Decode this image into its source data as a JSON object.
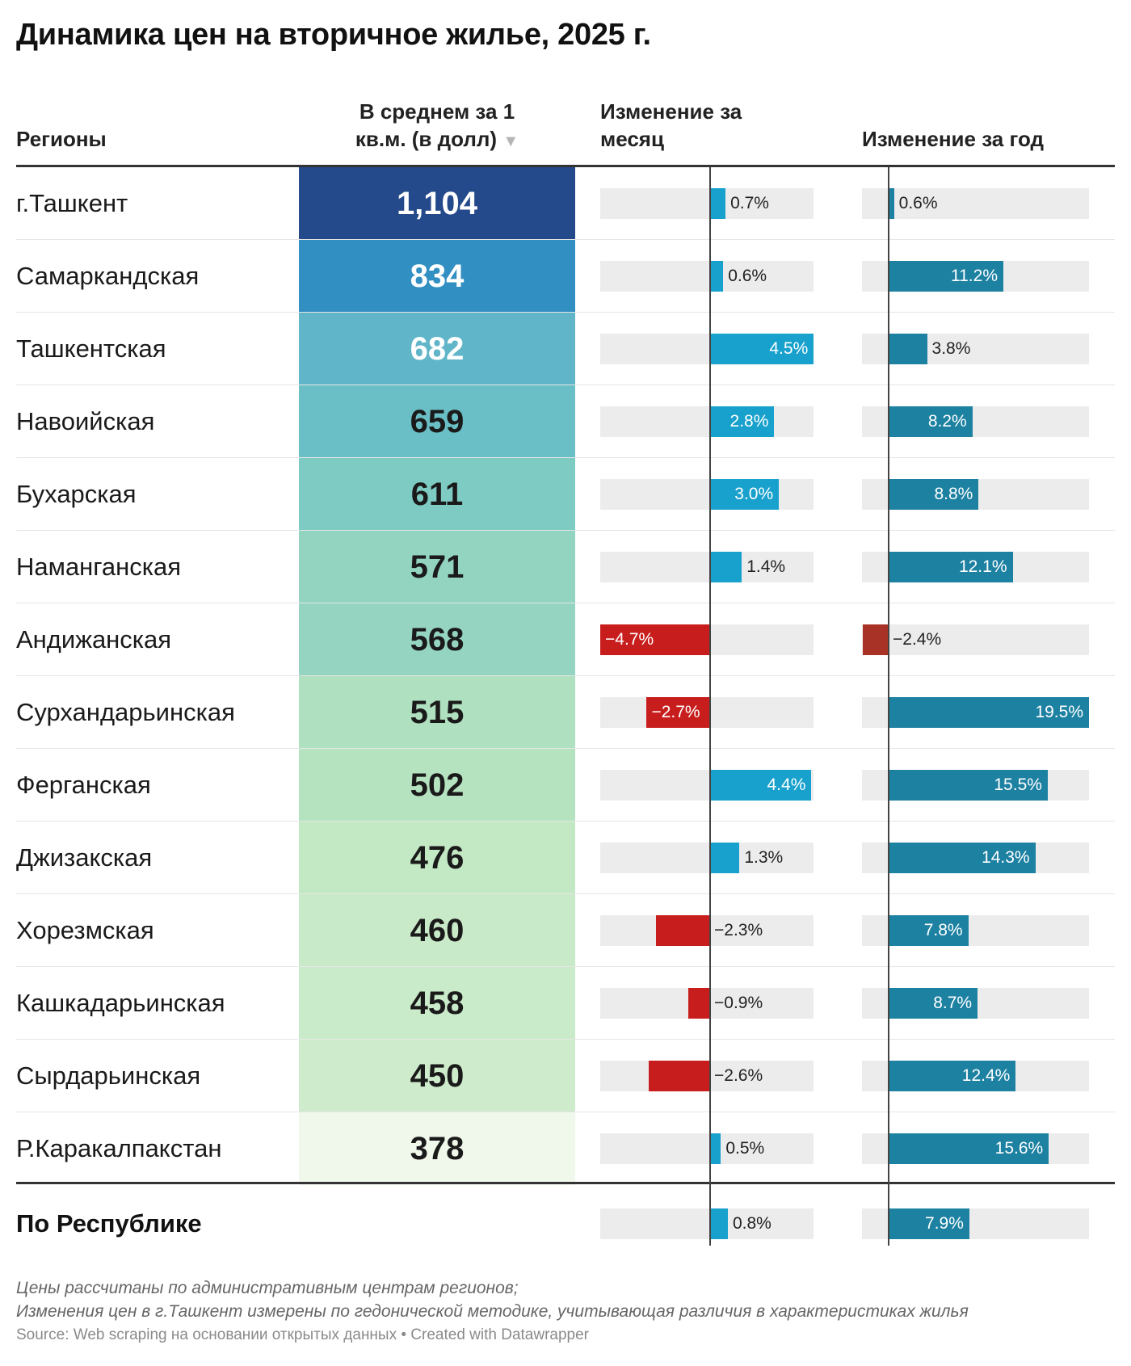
{
  "title": "Динамика цен на вторичное жилье, 2025 г.",
  "headers": {
    "region": "Регионы",
    "avg_line1": "В среднем за 1",
    "avg_line2": "кв.м. (в долл)",
    "sort_arrow": "▼",
    "month_line1": "Изменение за",
    "month_line2": "месяц",
    "year": "Изменение за год"
  },
  "colors": {
    "positive_month": "#18a1cd",
    "positive_year": "#1d81a2",
    "negative_month": "#c71e1d",
    "negative_year": "#a93226",
    "bar_bg": "#ececec"
  },
  "chart_data": {
    "type": "table",
    "title": "Динамика цен на вторичное жилье, 2025 г.",
    "columns": [
      "Регионы",
      "В среднем за 1 кв.м. (в долл)",
      "Изменение за месяц",
      "Изменение за год"
    ],
    "rows": [
      {
        "region": "г.Ташкент",
        "price": 1104,
        "price_label": "1,104",
        "month": 0.7,
        "month_label": "0.7%",
        "year": 0.6,
        "year_label": "0.6%",
        "heat": "#244a8b",
        "dark": true
      },
      {
        "region": "Самаркандская",
        "price": 834,
        "price_label": "834",
        "month": 0.6,
        "month_label": "0.6%",
        "year": 11.2,
        "year_label": "11.2%",
        "heat": "#318fc2",
        "dark": true
      },
      {
        "region": "Ташкентская",
        "price": 682,
        "price_label": "682",
        "month": 4.5,
        "month_label": "4.5%",
        "year": 3.8,
        "year_label": "3.8%",
        "heat": "#60b6c8",
        "dark": true
      },
      {
        "region": "Навоийская",
        "price": 659,
        "price_label": "659",
        "month": 2.8,
        "month_label": "2.8%",
        "year": 8.2,
        "year_label": "8.2%",
        "heat": "#69bfc5",
        "dark": false
      },
      {
        "region": "Бухарская",
        "price": 611,
        "price_label": "611",
        "month": 3.0,
        "month_label": "3.0%",
        "year": 8.8,
        "year_label": "8.8%",
        "heat": "#7dcbc3",
        "dark": false
      },
      {
        "region": "Наманганская",
        "price": 571,
        "price_label": "571",
        "month": 1.4,
        "month_label": "1.4%",
        "year": 12.1,
        "year_label": "12.1%",
        "heat": "#93d4c1",
        "dark": false
      },
      {
        "region": "Андижанская",
        "price": 568,
        "price_label": "568",
        "month": -4.7,
        "month_label": "−4.7%",
        "year": -2.4,
        "year_label": "−2.4%",
        "heat": "#94d4c1",
        "dark": false
      },
      {
        "region": "Сурхандарьинская",
        "price": 515,
        "price_label": "515",
        "month": -2.7,
        "month_label": "−2.7%",
        "year": 19.5,
        "year_label": "19.5%",
        "heat": "#afe0bf",
        "dark": false
      },
      {
        "region": "Ферганская",
        "price": 502,
        "price_label": "502",
        "month": 4.4,
        "month_label": "4.4%",
        "year": 15.5,
        "year_label": "15.5%",
        "heat": "#b6e3bf",
        "dark": false
      },
      {
        "region": "Джизакская",
        "price": 476,
        "price_label": "476",
        "month": 1.3,
        "month_label": "1.3%",
        "year": 14.3,
        "year_label": "14.3%",
        "heat": "#c3e8c4",
        "dark": false
      },
      {
        "region": "Хорезмская",
        "price": 460,
        "price_label": "460",
        "month": -2.3,
        "month_label": "−2.3%",
        "year": 7.8,
        "year_label": "7.8%",
        "heat": "#c9eac8",
        "dark": false
      },
      {
        "region": "Кашкадарьинская",
        "price": 458,
        "price_label": "458",
        "month": -0.9,
        "month_label": "−0.9%",
        "year": 8.7,
        "year_label": "8.7%",
        "heat": "#caebc9",
        "dark": false
      },
      {
        "region": "Сырдарьинская",
        "price": 450,
        "price_label": "450",
        "month": -2.6,
        "month_label": "−2.6%",
        "year": 12.4,
        "year_label": "12.4%",
        "heat": "#ceeccb",
        "dark": false
      },
      {
        "region": "Р.Каракалпакстан",
        "price": 378,
        "price_label": "378",
        "month": 0.5,
        "month_label": "0.5%",
        "year": 15.6,
        "year_label": "15.6%",
        "heat": "#eff8ea",
        "dark": false
      }
    ],
    "summary": {
      "region": "По Республике",
      "month": 0.8,
      "month_label": "0.8%",
      "year": 7.9,
      "year_label": "7.9%"
    },
    "month_range": [
      -4.7,
      4.5
    ],
    "year_range": [
      -2.4,
      19.5
    ]
  },
  "footer": {
    "note1": "Цены рассчитаны по административным центрам регионов;",
    "note2": "Изменения цен в г.Ташкент измерены по гедонической методике, учитывающая различия в характеристиках жилья",
    "source": "Source: Web scraping на основании открытых данных • Created with Datawrapper"
  }
}
